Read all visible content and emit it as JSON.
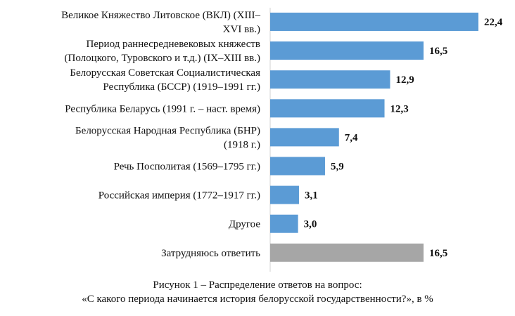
{
  "chart_data": {
    "type": "bar",
    "orientation": "horizontal",
    "categories": [
      [
        "Великое Княжество Литовское (ВКЛ) (XIII–",
        "XVI вв.)"
      ],
      [
        "Период раннесредневековых княжеств",
        "(Полоцкого, Туровского и т.д.) (IX–XIII вв.)"
      ],
      [
        "Белорусская Советская Социалистическая",
        "Республика (БССР) (1919–1991 гг.)"
      ],
      [
        "Республика Беларусь (1991 г. – наст. время)"
      ],
      [
        "Белорусская Народная Республика (БНР)",
        "(1918 г.)"
      ],
      [
        "Речь Посполитая (1569–1795 гг.)"
      ],
      [
        "Российская империя (1772–1917 гг.)"
      ],
      [
        "Другое"
      ],
      [
        "Затрудняюсь ответить"
      ]
    ],
    "values": [
      22.4,
      16.5,
      12.9,
      12.3,
      7.4,
      5.9,
      3.1,
      3.0,
      16.5
    ],
    "value_labels": [
      "22,4",
      "16,5",
      "12,9",
      "12,3",
      "7,4",
      "5,9",
      "3,1",
      "3,0",
      "16,5"
    ],
    "bar_colors": [
      "#5b9bd5",
      "#5b9bd5",
      "#5b9bd5",
      "#5b9bd5",
      "#5b9bd5",
      "#5b9bd5",
      "#5b9bd5",
      "#5b9bd5",
      "#a6a6a6"
    ],
    "xlim": [
      0,
      22.4
    ],
    "grid": false,
    "legend": "none"
  },
  "caption": {
    "line1": "Рисунок 1 – Распределение ответов на вопрос:",
    "line2": "«С какого периода начинается история белорусской государственности?», в %"
  }
}
